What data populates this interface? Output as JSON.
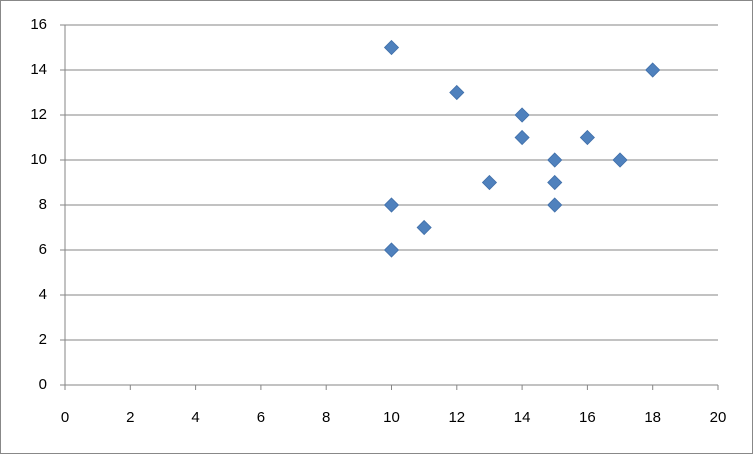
{
  "chart_data": {
    "type": "scatter",
    "x": [
      10,
      12,
      18,
      14,
      14,
      16,
      15,
      17,
      13,
      15,
      10,
      15,
      11,
      10
    ],
    "values": [
      15,
      13,
      14,
      12,
      11,
      11,
      10,
      10,
      9,
      9,
      8,
      8,
      7,
      6
    ],
    "color": "#4f81bd",
    "xlim": [
      0,
      20
    ],
    "xticks": [
      0,
      2,
      4,
      6,
      8,
      10,
      12,
      14,
      16,
      18,
      20
    ],
    "ylim": [
      0,
      16
    ],
    "yticks": [
      0,
      2,
      4,
      6,
      8,
      10,
      12,
      14,
      16
    ],
    "grid": true
  }
}
